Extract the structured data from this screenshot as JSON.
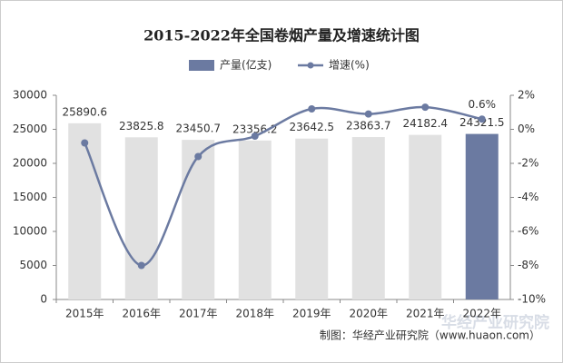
{
  "chart_data": {
    "type": "bar-line",
    "title": "2015-2022年全国卷烟产量及增速统计图",
    "categories": [
      "2015年",
      "2016年",
      "2017年",
      "2018年",
      "2019年",
      "2020年",
      "2021年",
      "2022年"
    ],
    "series": [
      {
        "name": "产量(亿支)",
        "type": "bar",
        "color": "#6b7aa1",
        "colors": [
          "#e1e1e1",
          "#e1e1e1",
          "#e1e1e1",
          "#e1e1e1",
          "#e1e1e1",
          "#e1e1e1",
          "#e1e1e1",
          "#6b7aa1"
        ],
        "values": [
          25890.6,
          23825.8,
          23450.7,
          23356.2,
          23642.5,
          23863.7,
          24182.4,
          24321.5
        ]
      },
      {
        "name": "增速(%)",
        "type": "line",
        "axis": "y2",
        "color": "#6b7aa1",
        "values": [
          -0.8,
          -8.0,
          -1.6,
          -0.4,
          1.2,
          0.9,
          1.3,
          0.6
        ],
        "value_labels": [
          null,
          null,
          null,
          null,
          null,
          null,
          null,
          "0.6%"
        ]
      }
    ],
    "ylim": [
      0,
      30000
    ],
    "yticks": [
      0,
      5000,
      10000,
      15000,
      20000,
      25000,
      30000
    ],
    "y2lim": [
      -10,
      2
    ],
    "y2ticks": [
      {
        "value": -10,
        "label": "-10%"
      },
      {
        "value": -8,
        "label": "-8%"
      },
      {
        "value": -6,
        "label": "-6%"
      },
      {
        "value": -4,
        "label": "-4%"
      },
      {
        "value": -2,
        "label": "-2%"
      },
      {
        "value": 0,
        "label": "0%"
      },
      {
        "value": 2,
        "label": "2%"
      }
    ],
    "source": "制图：华经产业研究院（www.huaon.com）",
    "watermark": "华经产业研究院"
  }
}
